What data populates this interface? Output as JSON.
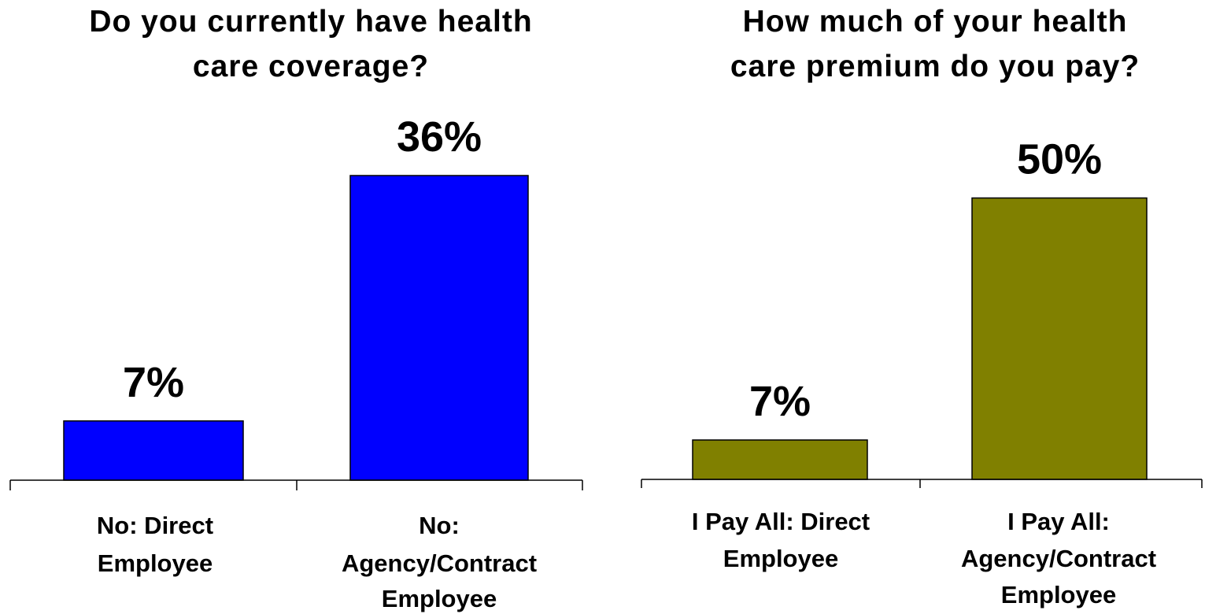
{
  "chart_data": [
    {
      "type": "bar",
      "title": "Do you currently have health care coverage?",
      "title_lines": [
        "Do you currently have health",
        "care coverage?"
      ],
      "categories": [
        "No:  Direct Employee",
        "No: Agency/Contract Employee"
      ],
      "category_lines": [
        [
          "No:  Direct",
          "Employee"
        ],
        [
          "No:",
          "Agency/Contract",
          "Employee"
        ]
      ],
      "values": [
        7,
        36
      ],
      "value_labels": [
        "7%",
        "36%"
      ],
      "unit": "%",
      "bar_color": "#0000FF",
      "xlabel": "",
      "ylabel": "",
      "grid": false,
      "legend": "none"
    },
    {
      "type": "bar",
      "title": "How much of your health care premium do you pay?",
      "title_lines": [
        "How much of your health",
        "care premium do you pay?"
      ],
      "categories": [
        "I Pay All:  Direct Employee",
        "I Pay All: Agency/Contract Employee"
      ],
      "category_lines": [
        [
          "I Pay All:  Direct",
          "Employee"
        ],
        [
          "I Pay All:",
          "Agency/Contract",
          "Employee"
        ]
      ],
      "values": [
        7,
        50
      ],
      "value_labels": [
        "7%",
        "50%"
      ],
      "unit": "%",
      "bar_color": "#808000",
      "xlabel": "",
      "ylabel": "",
      "grid": false,
      "legend": "none"
    }
  ]
}
